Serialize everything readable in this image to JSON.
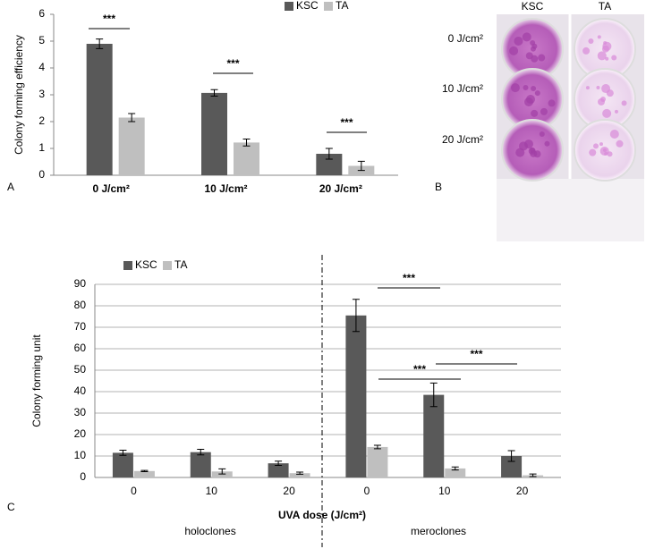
{
  "panels": [
    "A",
    "B",
    "C"
  ],
  "photo": {
    "columns": [
      "KSC",
      "TA"
    ],
    "rows": [
      "0 J/cm²",
      "10 J/cm²",
      "20 J/cm²"
    ]
  },
  "chart_data": [
    {
      "type": "bar",
      "y_label": "Colony forming efficiency",
      "categories": [
        "0 J/cm²",
        "10 J/cm²",
        "20 J/cm²"
      ],
      "series": [
        {
          "name": "KSC",
          "color": "#595959",
          "values": [
            4.9,
            3.07,
            0.8
          ],
          "errors": [
            0.18,
            0.12,
            0.2
          ]
        },
        {
          "name": "TA",
          "color": "#bfbfbf",
          "values": [
            2.15,
            1.22,
            0.35
          ],
          "errors": [
            0.15,
            0.13,
            0.17
          ]
        }
      ],
      "ylim": [
        0,
        6
      ],
      "yticks": [
        0,
        1,
        2,
        3,
        4,
        5,
        6
      ],
      "grid": false,
      "legend": "top",
      "annotations": [
        "***",
        "***",
        "***"
      ]
    },
    {
      "type": "bar",
      "y_label": "Colony forming unit",
      "x_label": "UVA dose (J/cm²)",
      "categories": [
        "0",
        "10",
        "20",
        "0",
        "10",
        "20"
      ],
      "groups": [
        "holoclones",
        "meroclones"
      ],
      "series": [
        {
          "name": "KSC",
          "color": "#595959",
          "values": [
            11.5,
            11.8,
            6.6,
            75.5,
            38.5,
            10
          ],
          "errors": [
            1.2,
            1.3,
            1,
            7.5,
            5.5,
            2.5
          ]
        },
        {
          "name": "TA",
          "color": "#bfbfbf",
          "values": [
            3,
            2.8,
            2,
            14.2,
            4.2,
            1
          ],
          "errors": [
            0.3,
            1.2,
            0.5,
            0.8,
            0.7,
            0.6
          ]
        }
      ],
      "ylim": [
        0,
        90
      ],
      "yticks": [
        0,
        10,
        20,
        30,
        40,
        50,
        60,
        70,
        80,
        90
      ],
      "grid": true,
      "legend": "top-left",
      "annotations": [
        "***",
        "***",
        "***"
      ]
    }
  ]
}
